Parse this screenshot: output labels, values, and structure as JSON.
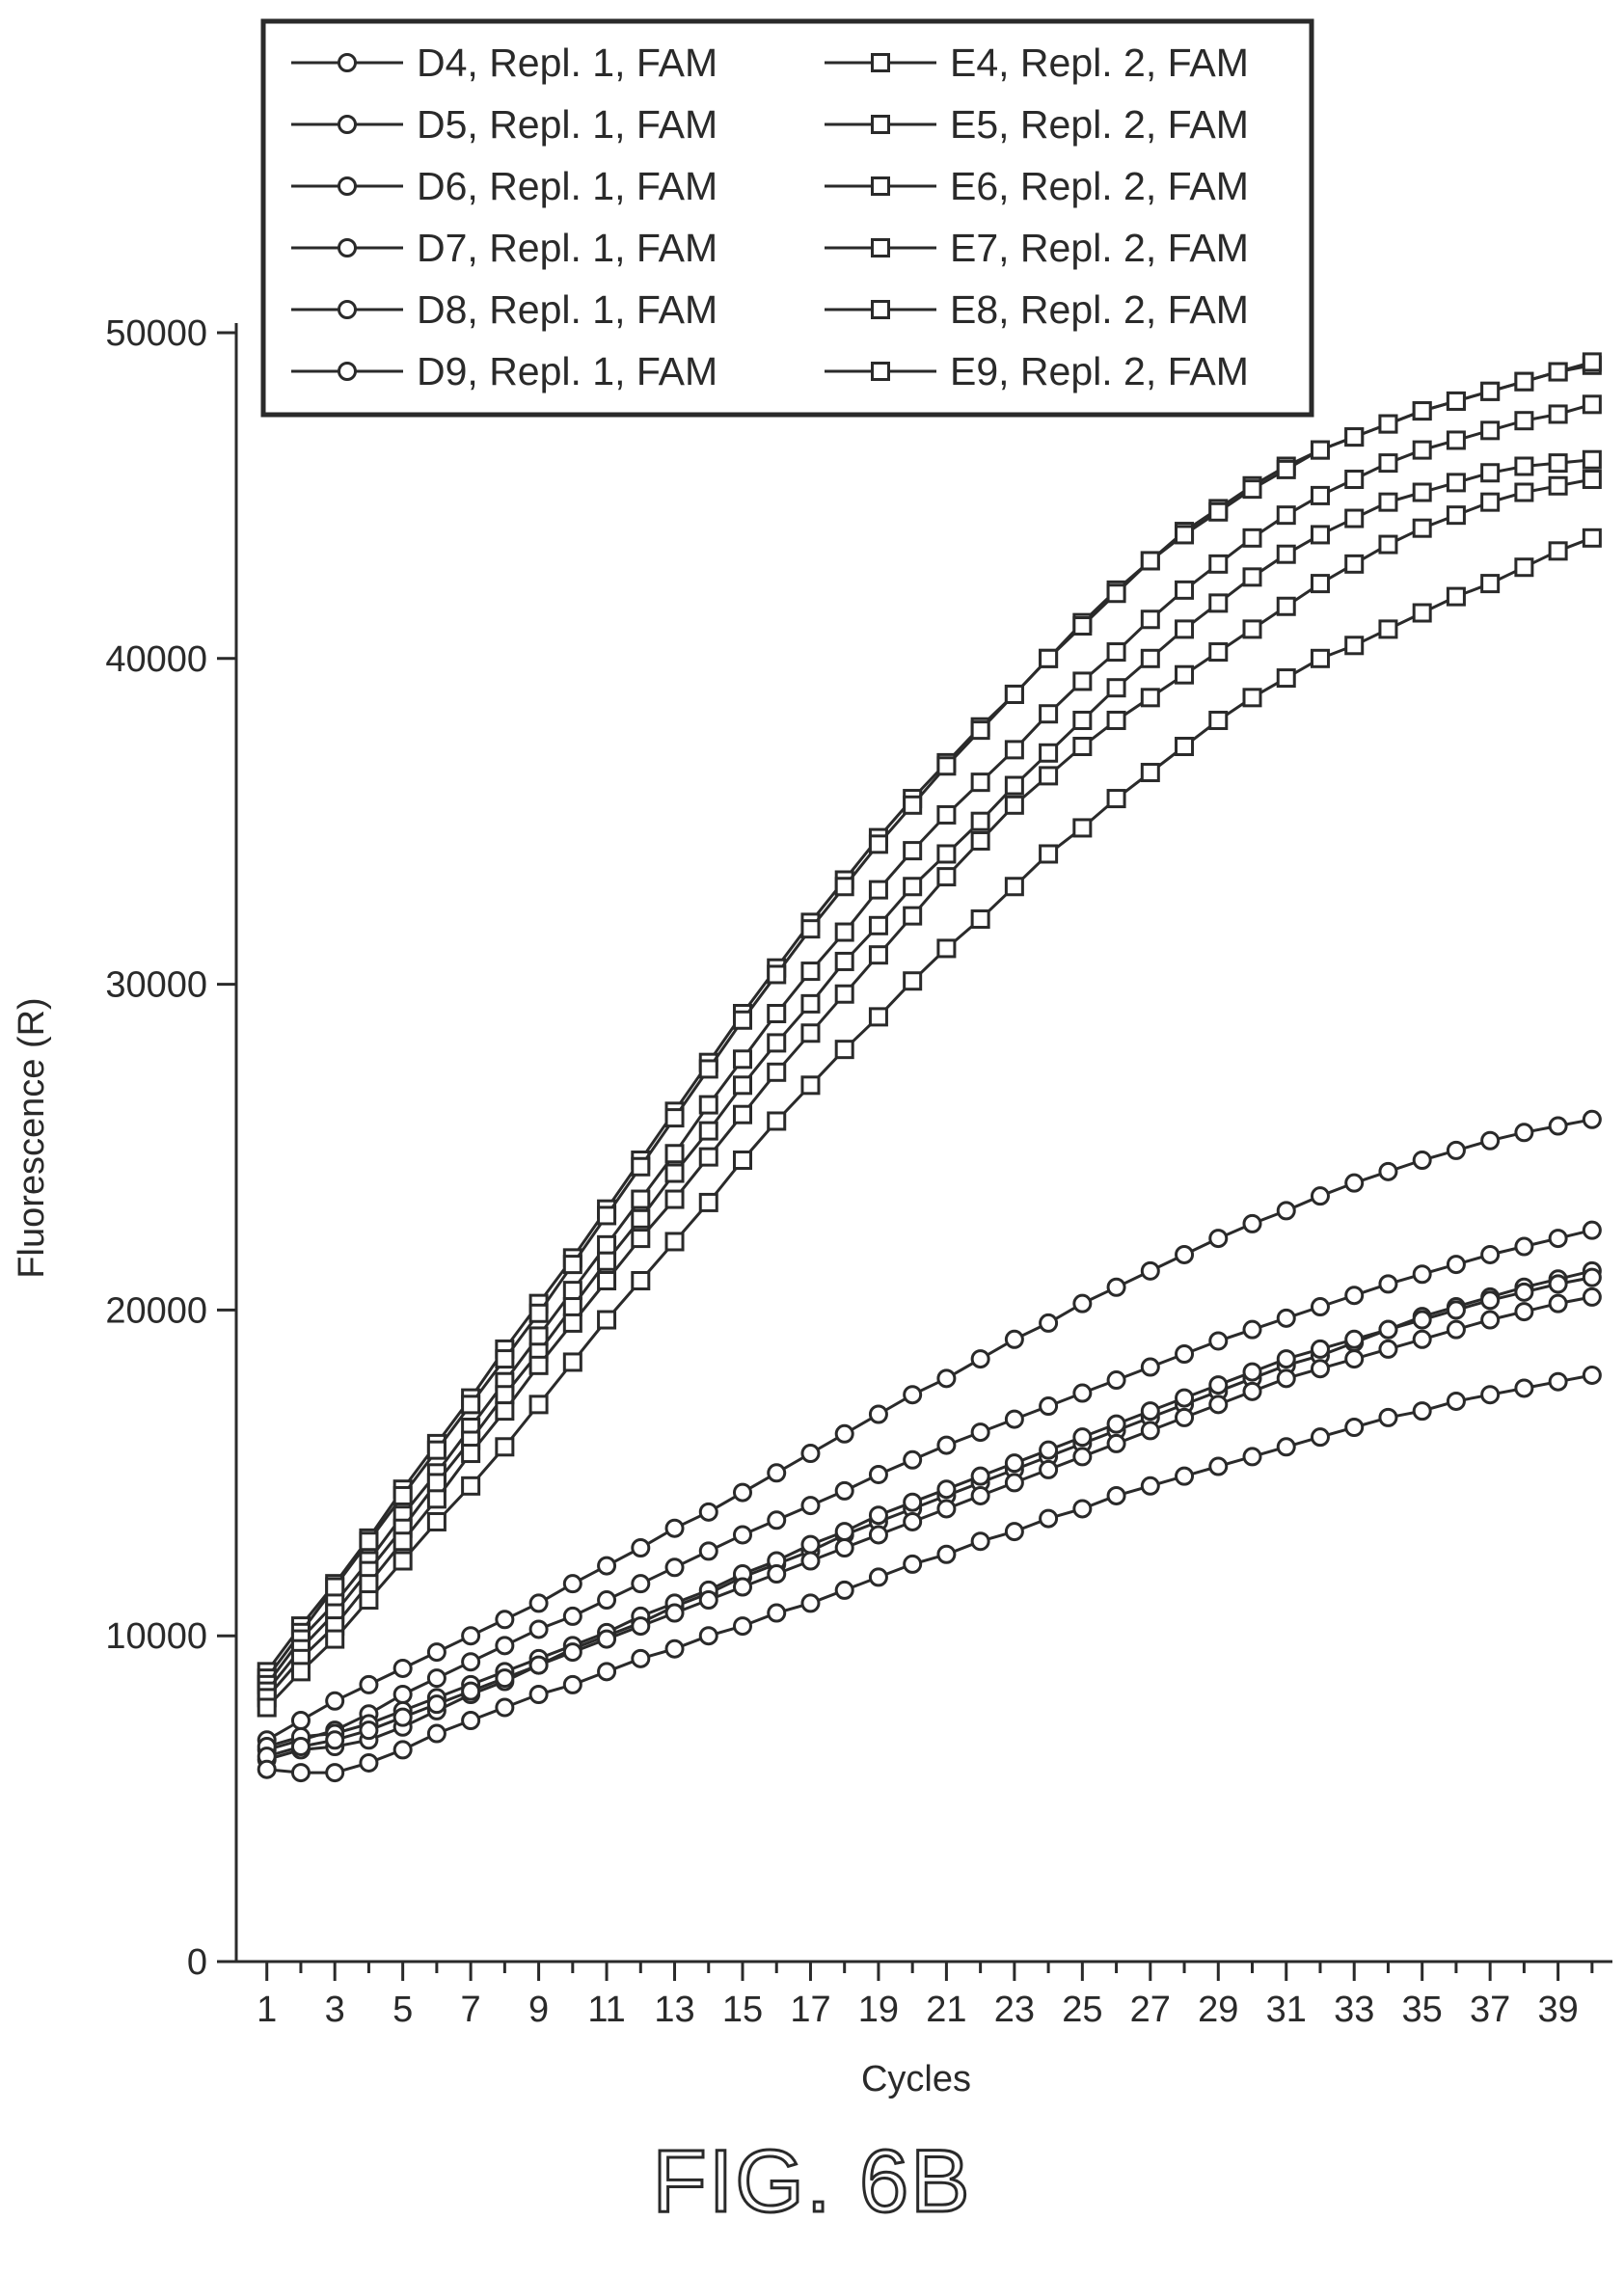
{
  "figure_label": "FIG. 6B",
  "chart_data": {
    "type": "line",
    "title": "",
    "xlabel": "Cycles",
    "ylabel": "Fluorescence (R)",
    "xlim": [
      0.1,
      40.6
    ],
    "ylim": [
      0,
      50000
    ],
    "x_ticks": [
      1,
      3,
      5,
      7,
      9,
      11,
      13,
      15,
      17,
      19,
      21,
      23,
      25,
      27,
      29,
      31,
      33,
      35,
      37,
      39
    ],
    "y_ticks": [
      0,
      10000,
      20000,
      30000,
      40000,
      50000
    ],
    "grid": false,
    "legend_position": "top-left",
    "x": [
      1,
      2,
      3,
      4,
      5,
      6,
      7,
      8,
      9,
      10,
      11,
      12,
      13,
      14,
      15,
      16,
      17,
      18,
      19,
      20,
      21,
      22,
      23,
      24,
      25,
      26,
      27,
      28,
      29,
      30,
      31,
      32,
      33,
      34,
      35,
      36,
      37,
      38,
      39,
      40
    ],
    "series": [
      {
        "name": "D4, Repl. 1, FAM",
        "marker": "circle",
        "values": [
          6800,
          7400,
          8000,
          8500,
          9000,
          9500,
          10000,
          10500,
          11000,
          11600,
          12150,
          12700,
          13300,
          13800,
          14400,
          15000,
          15600,
          16200,
          16800,
          17400,
          17900,
          18500,
          19100,
          19600,
          20200,
          20700,
          21200,
          21700,
          22200,
          22650,
          23050,
          23500,
          23900,
          24250,
          24600,
          24900,
          25200,
          25450,
          25650,
          25850
        ]
      },
      {
        "name": "D5, Repl. 1, FAM",
        "marker": "circle",
        "values": [
          6500,
          6800,
          7100,
          7600,
          8200,
          8700,
          9200,
          9700,
          10200,
          10600,
          11100,
          11600,
          12100,
          12600,
          13100,
          13550,
          14000,
          14450,
          14950,
          15400,
          15850,
          16250,
          16650,
          17050,
          17450,
          17850,
          18250,
          18650,
          19050,
          19400,
          19750,
          20100,
          20450,
          20800,
          21100,
          21400,
          21700,
          21950,
          22200,
          22450
        ]
      },
      {
        "name": "D6, Repl. 1, FAM",
        "marker": "circle",
        "values": [
          6200,
          6500,
          6600,
          6800,
          7200,
          7700,
          8200,
          8600,
          9100,
          9600,
          10000,
          10400,
          10900,
          11300,
          11800,
          12200,
          12600,
          13100,
          13500,
          13900,
          14300,
          14700,
          15100,
          15500,
          15900,
          16300,
          16700,
          17100,
          17500,
          17900,
          18300,
          18600,
          19000,
          19400,
          19800,
          20100,
          20400,
          20700,
          20950,
          21200
        ]
      },
      {
        "name": "D7, Repl. 1, FAM",
        "marker": "circle",
        "values": [
          6600,
          6900,
          7000,
          7300,
          7700,
          8100,
          8500,
          8900,
          9300,
          9700,
          10100,
          10600,
          11000,
          11400,
          11900,
          12300,
          12800,
          13200,
          13700,
          14100,
          14500,
          14900,
          15300,
          15700,
          16100,
          16500,
          16900,
          17300,
          17700,
          18100,
          18500,
          18800,
          19100,
          19400,
          19700,
          20000,
          20300,
          20550,
          20800,
          21000
        ]
      },
      {
        "name": "D8, Repl. 1, FAM",
        "marker": "circle",
        "values": [
          6300,
          6600,
          6800,
          7100,
          7500,
          7900,
          8300,
          8700,
          9100,
          9500,
          9900,
          10300,
          10700,
          11100,
          11500,
          11900,
          12300,
          12700,
          13100,
          13500,
          13900,
          14300,
          14700,
          15100,
          15500,
          15900,
          16300,
          16700,
          17100,
          17500,
          17900,
          18200,
          18500,
          18800,
          19100,
          19400,
          19700,
          19950,
          20200,
          20400
        ]
      },
      {
        "name": "D9, Repl. 1, FAM",
        "marker": "circle",
        "values": [
          5900,
          5800,
          5800,
          6100,
          6500,
          7000,
          7400,
          7800,
          8200,
          8500,
          8900,
          9300,
          9600,
          10000,
          10300,
          10700,
          11000,
          11400,
          11800,
          12200,
          12500,
          12900,
          13200,
          13600,
          13900,
          14300,
          14600,
          14900,
          15200,
          15500,
          15800,
          16100,
          16400,
          16700,
          16900,
          17200,
          17400,
          17600,
          17800,
          18000
        ]
      },
      {
        "name": "E4, Repl. 2, FAM",
        "marker": "square",
        "values": [
          8900,
          10300,
          11600,
          13000,
          14500,
          15900,
          17300,
          18800,
          20200,
          21600,
          23100,
          24600,
          26100,
          27600,
          29100,
          30500,
          31900,
          33200,
          34500,
          35700,
          36800,
          37900,
          38900,
          40000,
          41100,
          42100,
          43000,
          43900,
          44600,
          45300,
          45900,
          46400,
          46800,
          47200,
          47600,
          47900,
          48200,
          48500,
          48800,
          49000
        ]
      },
      {
        "name": "E5, Repl. 2, FAM",
        "marker": "square",
        "values": [
          8700,
          10100,
          11500,
          12900,
          14300,
          15700,
          17100,
          18500,
          19900,
          21400,
          22900,
          24400,
          25900,
          27400,
          28900,
          30300,
          31700,
          33000,
          34300,
          35500,
          36700,
          37800,
          38900,
          40000,
          41000,
          42000,
          43000,
          43800,
          44500,
          45200,
          45800,
          46400,
          46800,
          47200,
          47600,
          47900,
          48200,
          48500,
          48800,
          49100
        ]
      },
      {
        "name": "E6, Repl. 2, FAM",
        "marker": "square",
        "values": [
          8500,
          9900,
          11000,
          12300,
          13700,
          15000,
          16400,
          17800,
          19200,
          20600,
          22000,
          23400,
          24800,
          26300,
          27700,
          29100,
          30400,
          31600,
          32900,
          34100,
          35200,
          36200,
          37200,
          38300,
          39300,
          40200,
          41200,
          42100,
          42900,
          43700,
          44400,
          45000,
          45500,
          46000,
          46400,
          46700,
          47000,
          47300,
          47500,
          47800
        ]
      },
      {
        "name": "E7, Repl. 2, FAM",
        "marker": "square",
        "values": [
          8300,
          9600,
          10700,
          12000,
          13300,
          14700,
          16000,
          17400,
          18700,
          20100,
          21500,
          22800,
          24200,
          25500,
          26900,
          28200,
          29400,
          30700,
          31800,
          33000,
          34000,
          35000,
          36100,
          37100,
          38100,
          39100,
          40000,
          40900,
          41700,
          42500,
          43200,
          43800,
          44300,
          44800,
          45100,
          45400,
          45700,
          45900,
          46000,
          46100
        ]
      },
      {
        "name": "E8, Repl. 2, FAM",
        "marker": "square",
        "values": [
          8100,
          9300,
          10300,
          11600,
          12900,
          14200,
          15600,
          16900,
          18300,
          19600,
          20900,
          22200,
          23400,
          24700,
          26000,
          27300,
          28500,
          29700,
          30900,
          32100,
          33300,
          34400,
          35500,
          36400,
          37300,
          38100,
          38800,
          39500,
          40200,
          40900,
          41600,
          42300,
          42900,
          43500,
          44000,
          44400,
          44800,
          45100,
          45300,
          45500
        ]
      },
      {
        "name": "E9, Repl. 2, FAM",
        "marker": "square",
        "values": [
          7800,
          8900,
          9900,
          11100,
          12300,
          13500,
          14600,
          15800,
          17100,
          18400,
          19700,
          20900,
          22100,
          23300,
          24600,
          25800,
          26900,
          28000,
          29000,
          30100,
          31100,
          32000,
          33000,
          34000,
          34800,
          35700,
          36500,
          37300,
          38100,
          38800,
          39400,
          40000,
          40400,
          40900,
          41400,
          41900,
          42300,
          42800,
          43300,
          43700
        ]
      }
    ]
  }
}
